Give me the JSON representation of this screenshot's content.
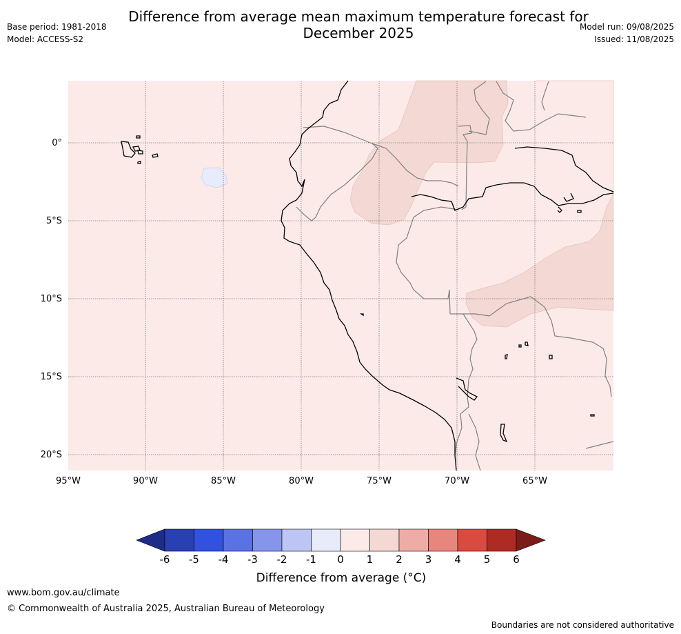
{
  "title_line1": "Difference from average mean maximum temperature forecast for",
  "title_line2": "December 2025",
  "meta_left": {
    "base_period": "Base period: 1981-2018",
    "model": "Model: ACCESS-S2"
  },
  "meta_right": {
    "model_run": "Model run: 09/08/2025",
    "issued": "Issued: 11/08/2025"
  },
  "map": {
    "lat_labels": [
      "0°",
      "5°S",
      "10°S",
      "15°S",
      "20°S"
    ],
    "lon_labels": [
      "95°W",
      "90°W",
      "85°W",
      "80°W",
      "75°W",
      "70°W",
      "65°W"
    ],
    "colors": {
      "bin_0_1": "#fbeae8",
      "bin_1_2": "#f3d8d4",
      "bin_m1_0": "#e8ebfa",
      "border": "#808080",
      "coast": "#000000"
    }
  },
  "colorbar": {
    "ticks": [
      "-6",
      "-5",
      "-4",
      "-3",
      "-2",
      "-1",
      "0",
      "1",
      "2",
      "3",
      "4",
      "5",
      "6"
    ],
    "colors": [
      "#1e2b87",
      "#2940b3",
      "#3152e0",
      "#5a72e3",
      "#8596ea",
      "#bcc5f3",
      "#e8ebfa",
      "#fbeae8",
      "#f3d8d4",
      "#eeaca7",
      "#e8857d",
      "#db4a3f",
      "#b02a24",
      "#7a1c1a"
    ],
    "label": "Difference from average (°C)"
  },
  "footer": {
    "url": "www.bom.gov.au/climate",
    "copyright": "© Commonwealth of Australia 2025, Australian Bureau of Meteorology",
    "note": "Boundaries are not considered authoritative"
  }
}
